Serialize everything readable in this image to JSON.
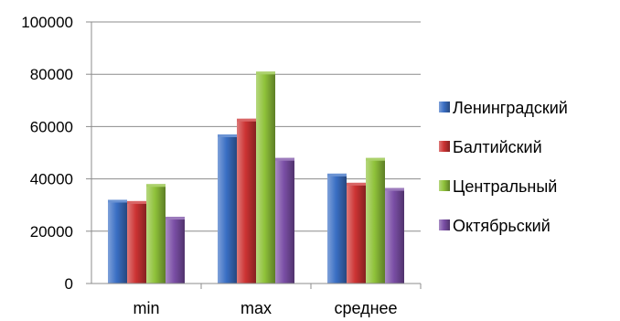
{
  "chart_data": {
    "type": "bar",
    "categories": [
      "min",
      "max",
      "среднее"
    ],
    "series": [
      {
        "name": "Ленинградский",
        "values": [
          32000,
          57000,
          42000
        ],
        "color": "#3a6fc4"
      },
      {
        "name": "Балтийский",
        "values": [
          31500,
          63000,
          38500
        ],
        "color": "#cc3333"
      },
      {
        "name": "Центральный",
        "values": [
          38000,
          81000,
          48000
        ],
        "color": "#8fc23a"
      },
      {
        "name": "Октябрьский",
        "values": [
          25500,
          48000,
          36500
        ],
        "color": "#7b4fa6"
      }
    ],
    "ylim": [
      0,
      100000
    ],
    "yticks": [
      0,
      20000,
      40000,
      60000,
      80000,
      100000
    ],
    "ytick_labels": [
      "0",
      "20000",
      "40000",
      "60000",
      "80000",
      "100000"
    ],
    "grid": true,
    "legend_position": "right"
  }
}
